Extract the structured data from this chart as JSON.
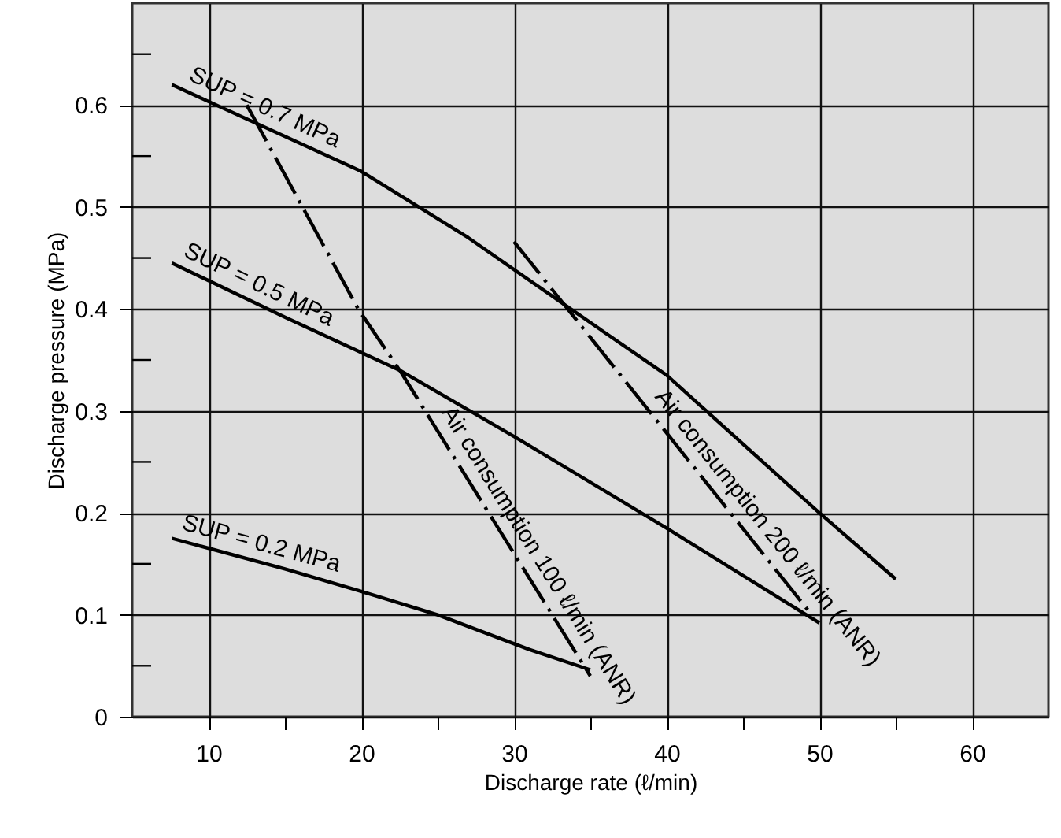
{
  "chart_data": {
    "type": "line",
    "xlabel": "Discharge rate (ℓ/min)",
    "ylabel": "Discharge pressure (MPa)",
    "xlim": [
      5,
      65
    ],
    "ylim": [
      0,
      0.7
    ],
    "xticks": [
      10,
      {
        "value": 15,
        "label": null
      },
      20,
      {
        "value": 25,
        "label": null
      },
      30,
      {
        "value": 35,
        "label": null
      },
      40,
      {
        "value": 45,
        "label": null
      },
      50,
      {
        "value": 55,
        "label": null
      },
      60
    ],
    "yticks": [
      0,
      {
        "value": 0.05,
        "label": null
      },
      0.1,
      {
        "value": 0.15,
        "label": null
      },
      0.2,
      {
        "value": 0.25,
        "label": null
      },
      0.3,
      {
        "value": 0.35,
        "label": null
      },
      0.4,
      {
        "value": 0.45,
        "label": null
      },
      0.5,
      {
        "value": 0.55,
        "label": null
      },
      0.6,
      {
        "value": 0.65,
        "label": null
      }
    ],
    "grid": true,
    "marker": "none",
    "series": [
      {
        "name": "SUP = 0.7 MPa",
        "color": "#000000",
        "line_style": "solid",
        "x": [
          7.6,
          20,
          27,
          34,
          40,
          50,
          55
        ],
        "values": [
          0.62,
          0.535,
          0.47,
          0.397,
          0.335,
          0.2,
          0.135
        ]
      },
      {
        "name": "SUP = 0.5 MPa",
        "color": "#000000",
        "line_style": "solid",
        "x": [
          7.6,
          15,
          22.5,
          30,
          40,
          50
        ],
        "values": [
          0.445,
          0.392,
          0.34,
          0.275,
          0.185,
          0.092
        ]
      },
      {
        "name": "SUP = 0.2 MPa",
        "color": "#000000",
        "line_style": "solid",
        "x": [
          7.6,
          15,
          20,
          25,
          31,
          35
        ],
        "values": [
          0.175,
          0.145,
          0.123,
          0.1,
          0.066,
          0.046
        ]
      },
      {
        "name": "Air consumption 100 ℓ/min (ANR)",
        "color": "#000000",
        "line_style": "dashed",
        "x": [
          12.5,
          19.8,
          22.6,
          35
        ],
        "values": [
          0.6,
          0.4,
          0.338,
          0.04
        ]
      },
      {
        "name": "Air consumption 200 ℓ/min (ANR)",
        "color": "#000000",
        "line_style": "dashed",
        "x": [
          30,
          49.5
        ],
        "values": [
          0.466,
          0.1
        ]
      }
    ]
  }
}
